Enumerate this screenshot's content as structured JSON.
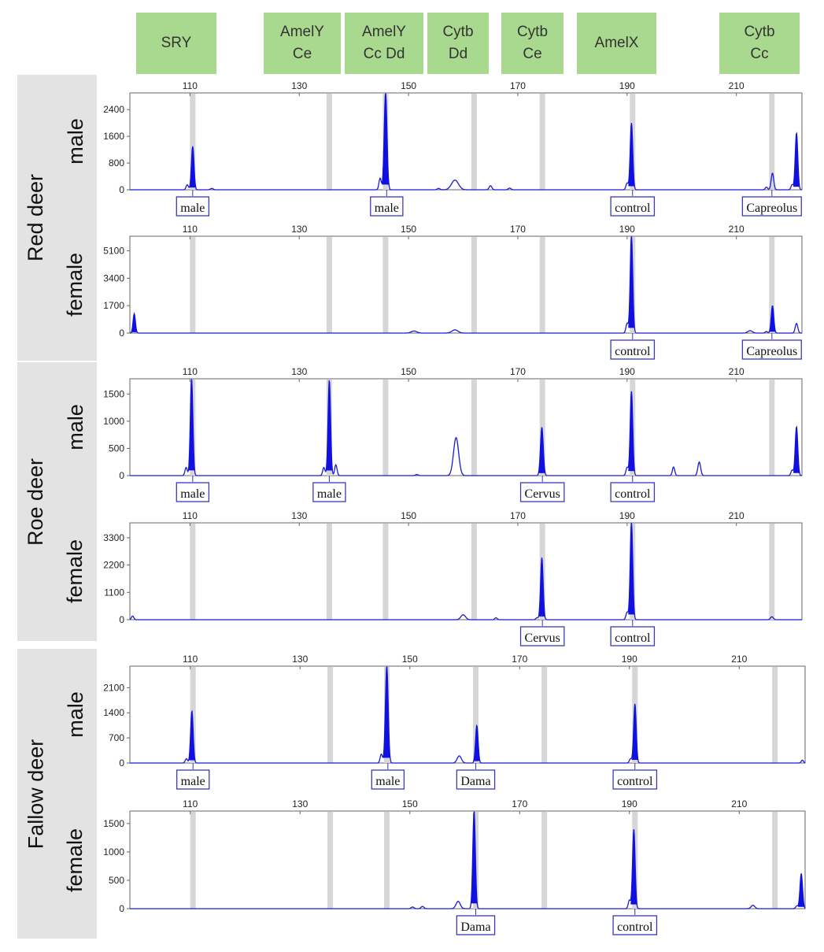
{
  "headers": [
    {
      "label": "SRY"
    },
    {
      "label": "AmelY\nCe"
    },
    {
      "label": "AmelY\nCc Dd"
    },
    {
      "label": "Cytb\nDd"
    },
    {
      "label": "Cytb\nCe"
    },
    {
      "label": "AmelX"
    },
    {
      "label": "Cytb\nCc"
    }
  ],
  "species": [
    {
      "name": "Red deer"
    },
    {
      "name": "Roe deer"
    },
    {
      "name": "Fallow deer"
    }
  ],
  "chart_data": [
    {
      "type": "line",
      "title": "Red deer male",
      "species": "Red deer",
      "sex": "male",
      "x_ticks": [
        110,
        130,
        150,
        170,
        190,
        210
      ],
      "x_range": [
        99,
        222
      ],
      "y_ticks": [
        "2400",
        "1600",
        "800",
        "0"
      ],
      "y_tick_values": [
        2400,
        1600,
        800,
        0
      ],
      "ylim": [
        0,
        2900
      ],
      "bins": [
        110.5,
        135.5,
        145.8,
        162,
        174.5,
        191,
        216.5
      ],
      "peaks": [
        {
          "x": 110.5,
          "y": 1300,
          "w": 0.55
        },
        {
          "x": 109.5,
          "y": 150,
          "w": 0.5
        },
        {
          "x": 114,
          "y": 40,
          "w": 0.6
        },
        {
          "x": 145.8,
          "y": 2900,
          "w": 0.6
        },
        {
          "x": 144.8,
          "y": 350,
          "w": 0.5
        },
        {
          "x": 155.5,
          "y": 40,
          "w": 0.6
        },
        {
          "x": 158.5,
          "y": 290,
          "w": 1.5
        },
        {
          "x": 165,
          "y": 120,
          "w": 0.6
        },
        {
          "x": 168.5,
          "y": 50,
          "w": 0.6
        },
        {
          "x": 190.8,
          "y": 2000,
          "w": 0.55
        },
        {
          "x": 190,
          "y": 200,
          "w": 0.5
        },
        {
          "x": 216.6,
          "y": 500,
          "w": 0.55
        },
        {
          "x": 215.5,
          "y": 80,
          "w": 0.5
        },
        {
          "x": 221,
          "y": 1700,
          "w": 0.55
        },
        {
          "x": 220.2,
          "y": 150,
          "w": 0.5
        }
      ],
      "calls": [
        {
          "label": "male",
          "x": 110.5
        },
        {
          "label": "male",
          "x": 146
        },
        {
          "label": "control",
          "x": 191
        },
        {
          "label": "Capreolus",
          "x": 216.5
        }
      ]
    },
    {
      "type": "line",
      "title": "Red deer female",
      "species": "Red deer",
      "sex": "female",
      "x_ticks": [
        110,
        130,
        150,
        170,
        190,
        210
      ],
      "x_range": [
        99,
        222
      ],
      "y_ticks": [
        "5100",
        "3400",
        "1700",
        "0"
      ],
      "y_tick_values": [
        5100,
        3400,
        1700,
        0
      ],
      "ylim": [
        0,
        6000
      ],
      "bins": [
        110.5,
        135.5,
        145.8,
        162,
        174.5,
        191,
        216.5
      ],
      "peaks": [
        {
          "x": 99.8,
          "y": 1200,
          "w": 0.5
        },
        {
          "x": 151,
          "y": 130,
          "w": 1.2
        },
        {
          "x": 158.5,
          "y": 200,
          "w": 1.3
        },
        {
          "x": 190.8,
          "y": 6000,
          "w": 0.55
        },
        {
          "x": 190,
          "y": 600,
          "w": 0.5
        },
        {
          "x": 212.5,
          "y": 150,
          "w": 1.0
        },
        {
          "x": 216.6,
          "y": 1700,
          "w": 0.55
        },
        {
          "x": 215.5,
          "y": 100,
          "w": 0.5
        },
        {
          "x": 221,
          "y": 600,
          "w": 0.55
        }
      ],
      "calls": [
        {
          "label": "control",
          "x": 191
        },
        {
          "label": "Capreolus",
          "x": 216.5
        }
      ]
    },
    {
      "type": "line",
      "title": "Roe deer male",
      "species": "Roe deer",
      "sex": "male",
      "x_ticks": [
        110,
        130,
        150,
        170,
        190,
        210
      ],
      "x_range": [
        99,
        222
      ],
      "y_ticks": [
        "1500",
        "1000",
        "500",
        "0"
      ],
      "y_tick_values": [
        1500,
        1000,
        500,
        0
      ],
      "ylim": [
        0,
        1780
      ],
      "bins": [
        110.5,
        135.5,
        145.8,
        162,
        174.5,
        191,
        216.5
      ],
      "peaks": [
        {
          "x": 110.3,
          "y": 1780,
          "w": 0.55
        },
        {
          "x": 109.3,
          "y": 150,
          "w": 0.5
        },
        {
          "x": 135.5,
          "y": 1750,
          "w": 0.55
        },
        {
          "x": 134.5,
          "y": 150,
          "w": 0.5
        },
        {
          "x": 136.7,
          "y": 200,
          "w": 0.5
        },
        {
          "x": 151.5,
          "y": 20,
          "w": 0.6
        },
        {
          "x": 158.7,
          "y": 700,
          "w": 1.1
        },
        {
          "x": 174.4,
          "y": 890,
          "w": 0.6
        },
        {
          "x": 190.8,
          "y": 1550,
          "w": 0.55
        },
        {
          "x": 190,
          "y": 150,
          "w": 0.5
        },
        {
          "x": 198.5,
          "y": 160,
          "w": 0.5
        },
        {
          "x": 203.2,
          "y": 250,
          "w": 0.6
        },
        {
          "x": 221,
          "y": 900,
          "w": 0.55
        },
        {
          "x": 220.2,
          "y": 100,
          "w": 0.5
        }
      ],
      "calls": [
        {
          "label": "male",
          "x": 110.5
        },
        {
          "label": "male",
          "x": 135.5
        },
        {
          "label": "Cervus",
          "x": 174.5
        },
        {
          "label": "control",
          "x": 191
        }
      ]
    },
    {
      "type": "line",
      "title": "Roe deer female",
      "species": "Roe deer",
      "sex": "female",
      "x_ticks": [
        110,
        130,
        150,
        170,
        190,
        210
      ],
      "x_range": [
        99,
        222
      ],
      "y_ticks": [
        "3300",
        "2200",
        "1100",
        "0"
      ],
      "y_tick_values": [
        3300,
        2200,
        1100,
        0
      ],
      "ylim": [
        0,
        3900
      ],
      "bins": [
        110.5,
        135.5,
        145.8,
        162,
        174.5,
        191,
        216.5
      ],
      "peaks": [
        {
          "x": 99.5,
          "y": 150,
          "w": 0.5
        },
        {
          "x": 160,
          "y": 200,
          "w": 1.0
        },
        {
          "x": 166,
          "y": 80,
          "w": 0.5
        },
        {
          "x": 174.4,
          "y": 2500,
          "w": 0.55
        },
        {
          "x": 173.5,
          "y": 80,
          "w": 0.5
        },
        {
          "x": 190.8,
          "y": 3900,
          "w": 0.55
        },
        {
          "x": 190,
          "y": 300,
          "w": 0.5
        },
        {
          "x": 216.5,
          "y": 120,
          "w": 0.6
        }
      ],
      "calls": [
        {
          "label": "Cervus",
          "x": 174.5
        },
        {
          "label": "control",
          "x": 191
        }
      ]
    },
    {
      "type": "line",
      "title": "Fallow deer male",
      "species": "Fallow deer",
      "sex": "male",
      "x_ticks": [
        110,
        130,
        150,
        170,
        190,
        210
      ],
      "x_range": [
        99,
        222
      ],
      "y_ticks": [
        "2100",
        "1400",
        "700",
        "0"
      ],
      "y_tick_values": [
        2100,
        1400,
        700,
        0
      ],
      "ylim": [
        0,
        2700
      ],
      "bins": [
        110.5,
        135.5,
        145.8,
        162,
        174.5,
        191,
        216.5
      ],
      "peaks": [
        {
          "x": 110.3,
          "y": 1450,
          "w": 0.55
        },
        {
          "x": 109.3,
          "y": 120,
          "w": 0.5
        },
        {
          "x": 145.8,
          "y": 2700,
          "w": 0.6
        },
        {
          "x": 144.8,
          "y": 250,
          "w": 0.5
        },
        {
          "x": 159,
          "y": 200,
          "w": 0.9
        },
        {
          "x": 162.2,
          "y": 1050,
          "w": 0.55
        },
        {
          "x": 191,
          "y": 1650,
          "w": 0.55
        },
        {
          "x": 190.2,
          "y": 120,
          "w": 0.5
        },
        {
          "x": 221.5,
          "y": 80,
          "w": 0.5
        }
      ],
      "calls": [
        {
          "label": "male",
          "x": 110.5
        },
        {
          "label": "male",
          "x": 146
        },
        {
          "label": "Dama",
          "x": 162
        },
        {
          "label": "control",
          "x": 191
        }
      ]
    },
    {
      "type": "line",
      "title": "Fallow deer female",
      "species": "Fallow deer",
      "sex": "female",
      "x_ticks": [
        110,
        130,
        150,
        170,
        190,
        210
      ],
      "x_range": [
        99,
        222
      ],
      "y_ticks": [
        "1500",
        "1000",
        "500",
        "0"
      ],
      "y_tick_values": [
        1500,
        1000,
        500,
        0
      ],
      "ylim": [
        0,
        1720
      ],
      "bins": [
        110.5,
        135.5,
        145.8,
        162,
        174.5,
        191,
        216.5
      ],
      "peaks": [
        {
          "x": 150.5,
          "y": 30,
          "w": 0.6
        },
        {
          "x": 152.3,
          "y": 40,
          "w": 0.6
        },
        {
          "x": 158.8,
          "y": 130,
          "w": 0.9
        },
        {
          "x": 161.7,
          "y": 1720,
          "w": 0.55
        },
        {
          "x": 190.8,
          "y": 1400,
          "w": 0.55
        },
        {
          "x": 190,
          "y": 150,
          "w": 0.5
        },
        {
          "x": 212.5,
          "y": 60,
          "w": 0.8
        },
        {
          "x": 221.3,
          "y": 620,
          "w": 0.55
        },
        {
          "x": 220.5,
          "y": 50,
          "w": 0.5
        }
      ],
      "calls": [
        {
          "label": "Dama",
          "x": 162
        },
        {
          "label": "control",
          "x": 191
        }
      ]
    }
  ]
}
